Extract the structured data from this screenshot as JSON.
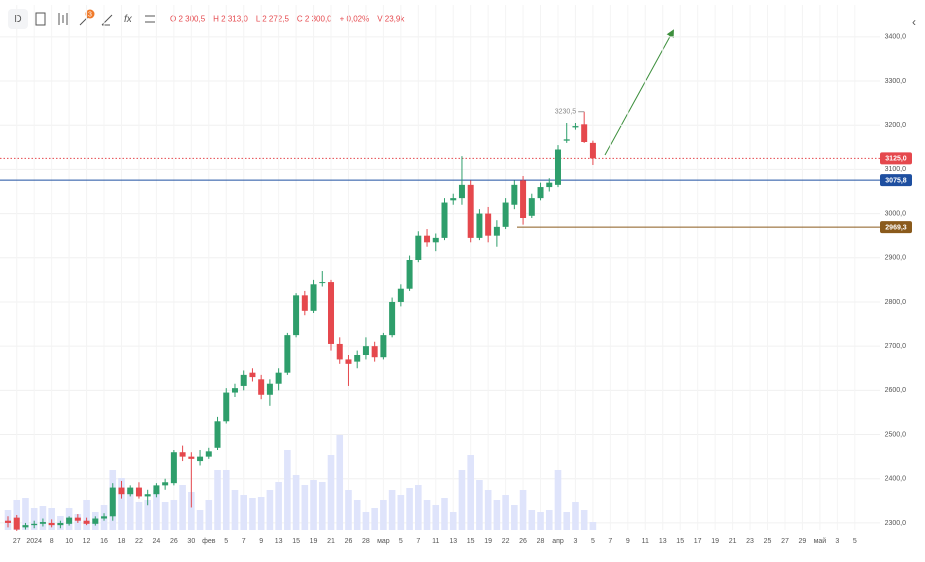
{
  "toolbar": {
    "interval": "D",
    "badge": "3",
    "legend": [
      "O 2 300,5",
      "H 2 313,0",
      "L 2 272,5",
      "C 2 300,0",
      "+ 0,02%",
      "V 23,9k"
    ]
  },
  "chart_data": {
    "type": "candlestick",
    "open": [
      2305,
      2312,
      2290,
      2295,
      2298,
      2300,
      2295,
      2298,
      2312,
      2305,
      2298,
      2310,
      2315,
      2380,
      2365,
      2380,
      2360,
      2365,
      2385,
      2390,
      2460,
      2450,
      2440,
      2450,
      2470,
      2530,
      2595,
      2610,
      2640,
      2625,
      2590,
      2615,
      2640,
      2725,
      2815,
      2780,
      2845,
      2845,
      2705,
      2670,
      2665,
      2680,
      2700,
      2675,
      2725,
      2800,
      2830,
      2895,
      2950,
      2935,
      2945,
      3030,
      3035,
      3065,
      2945,
      3000,
      2950,
      2970,
      3020,
      3075,
      2995,
      3035,
      3060,
      3065,
      3165,
      3195,
      3202,
      3160
    ],
    "high": [
      2315,
      2318,
      2300,
      2305,
      2310,
      2308,
      2305,
      2315,
      2320,
      2312,
      2315,
      2322,
      2390,
      2395,
      2385,
      2392,
      2375,
      2390,
      2400,
      2465,
      2475,
      2460,
      2465,
      2470,
      2540,
      2605,
      2615,
      2645,
      2650,
      2635,
      2625,
      2650,
      2730,
      2820,
      2825,
      2850,
      2870,
      2850,
      2720,
      2680,
      2690,
      2720,
      2710,
      2730,
      2810,
      2840,
      2905,
      2960,
      2965,
      2955,
      3035,
      3045,
      3130,
      3075,
      3010,
      3015,
      2985,
      3035,
      3075,
      3085,
      3045,
      3070,
      3080,
      3155,
      3205,
      3205,
      3230.5,
      3165
    ],
    "low": [
      2290,
      2282,
      2285,
      2288,
      2292,
      2290,
      2288,
      2294,
      2300,
      2295,
      2294,
      2305,
      2305,
      2355,
      2360,
      2355,
      2340,
      2358,
      2375,
      2385,
      2440,
      2335,
      2430,
      2445,
      2465,
      2525,
      2585,
      2600,
      2620,
      2580,
      2565,
      2600,
      2635,
      2720,
      2770,
      2775,
      2835,
      2690,
      2660,
      2610,
      2650,
      2670,
      2665,
      2670,
      2720,
      2790,
      2825,
      2890,
      2925,
      2915,
      2940,
      3020,
      3020,
      2935,
      2940,
      2935,
      2925,
      2965,
      3010,
      2975,
      2990,
      3030,
      3050,
      3060,
      3160,
      3190,
      3160,
      3110
    ],
    "close": [
      2300,
      2285,
      2295,
      2298,
      2302,
      2295,
      2300,
      2312,
      2305,
      2298,
      2310,
      2315,
      2380,
      2365,
      2380,
      2360,
      2365,
      2385,
      2392,
      2460,
      2450,
      2445,
      2450,
      2462,
      2530,
      2595,
      2605,
      2635,
      2630,
      2590,
      2615,
      2640,
      2725,
      2815,
      2780,
      2840,
      2845,
      2705,
      2670,
      2660,
      2680,
      2700,
      2675,
      2725,
      2800,
      2830,
      2895,
      2950,
      2935,
      2945,
      3025,
      3035,
      3065,
      2945,
      3000,
      2950,
      2970,
      3025,
      3065,
      2990,
      3035,
      3060,
      3070,
      3145,
      3168,
      3198,
      3162,
      3125
    ],
    "volume": [
      20,
      30,
      32,
      22,
      24,
      22,
      14,
      22,
      16,
      30,
      18,
      25,
      60,
      52,
      40,
      28,
      30,
      40,
      28,
      30,
      45,
      38,
      20,
      30,
      60,
      60,
      40,
      35,
      32,
      33,
      40,
      48,
      80,
      55,
      45,
      50,
      48,
      75,
      95,
      40,
      30,
      18,
      22,
      30,
      40,
      35,
      42,
      45,
      30,
      25,
      32,
      18,
      60,
      75,
      50,
      40,
      30,
      35,
      25,
      40,
      20,
      18,
      20,
      60,
      18,
      28,
      20,
      8
    ],
    "up_color": "#2e9e6b",
    "down_color": "#e5484d",
    "volume_color": "#dfe4fb",
    "x_labels": [
      "27",
      "2024",
      "8",
      "10",
      "12",
      "16",
      "18",
      "22",
      "24",
      "26",
      "30",
      "фев",
      "5",
      "7",
      "9",
      "13",
      "15",
      "19",
      "21",
      "26",
      "28",
      "мар",
      "5",
      "7",
      "11",
      "13",
      "15",
      "19",
      "22",
      "26",
      "28",
      "апр",
      "3",
      "5",
      "7",
      "9",
      "11",
      "13",
      "15",
      "17",
      "19",
      "21",
      "23",
      "25",
      "27",
      "29",
      "май",
      "3",
      "5"
    ],
    "ylim": [
      2284,
      3472
    ],
    "yticks": [
      {
        "value": 2300,
        "label": "2300,0"
      },
      {
        "value": 2400,
        "label": "2400,0"
      },
      {
        "value": 2500,
        "label": "2500,0"
      },
      {
        "value": 2600,
        "label": "2600,0"
      },
      {
        "value": 2700,
        "label": "2700,0"
      },
      {
        "value": 2800,
        "label": "2800,0"
      },
      {
        "value": 2900,
        "label": "2900,0"
      },
      {
        "value": 3000,
        "label": "3000,0"
      },
      {
        "value": 3100,
        "label": "3100,0"
      },
      {
        "value": 3200,
        "label": "3200,0"
      },
      {
        "value": 3300,
        "label": "3300,0"
      },
      {
        "value": 3400,
        "label": "3400,0"
      }
    ],
    "grid": true,
    "levels": [
      {
        "value": 3125,
        "label": "3125,0",
        "color": "#e5484d",
        "style": "dotted"
      },
      {
        "value": 3075.8,
        "label": "3075,8",
        "color": "#1e4fa0",
        "style": "solid"
      },
      {
        "value": 2969.3,
        "label": "2969,3",
        "color": "#8a5a1c",
        "style": "solid"
      }
    ],
    "annotations": [
      {
        "value": 3230.5,
        "label": "3230,5"
      }
    ]
  }
}
